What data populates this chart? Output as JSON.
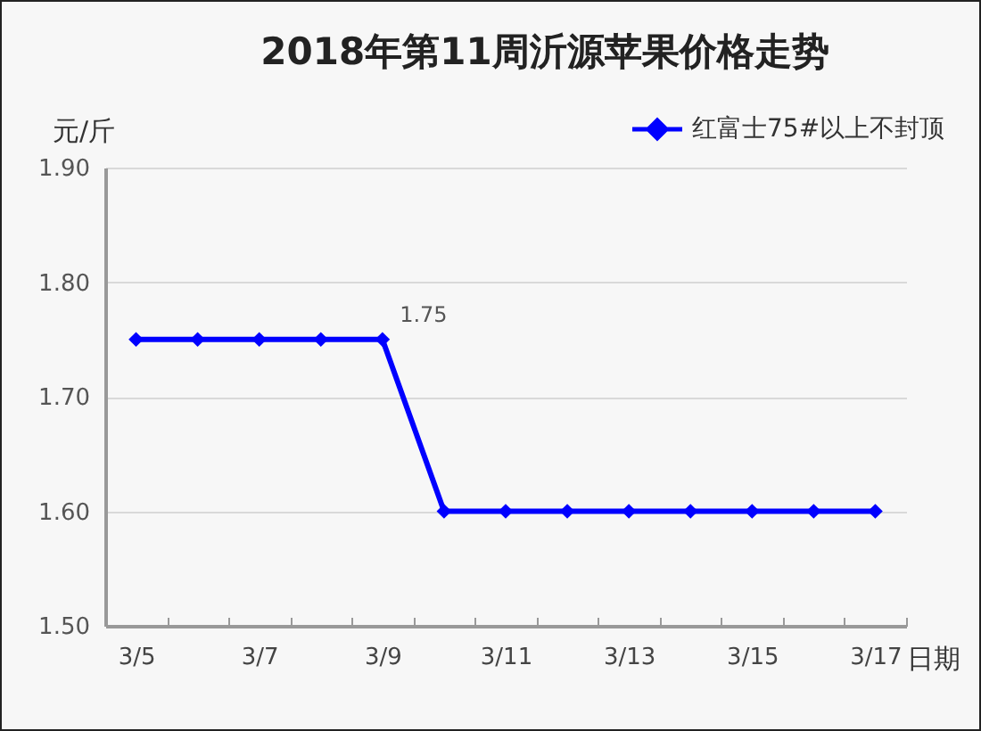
{
  "chart_data": {
    "type": "line",
    "title": "2018年第11周沂源苹果价格走势",
    "xlabel": "日期",
    "ylabel": "元/斤",
    "categories": [
      "3/5",
      null,
      "3/7",
      null,
      "3/9",
      null,
      "3/11",
      null,
      "3/13",
      null,
      "3/15",
      null,
      "3/17"
    ],
    "series": [
      {
        "name": "红富士75#以上不封顶",
        "color": "#0000ff",
        "values": [
          1.75,
          1.75,
          1.75,
          1.75,
          1.75,
          1.6,
          1.6,
          1.6,
          1.6,
          1.6,
          1.6,
          1.6,
          1.6
        ],
        "value_labels": [
          null,
          null,
          null,
          null,
          "1.75",
          null,
          null,
          null,
          null,
          null,
          null,
          null,
          null
        ]
      }
    ],
    "ylim": [
      1.5,
      1.9
    ],
    "yticks": [
      {
        "value": 1.5,
        "label": "1.50"
      },
      {
        "value": 1.6,
        "label": "1.60"
      },
      {
        "value": 1.7,
        "label": "1.70"
      },
      {
        "value": 1.8,
        "label": "1.80"
      },
      {
        "value": 1.9,
        "label": "1.90"
      }
    ],
    "grid": "y",
    "legend": "top right",
    "marker": "diamond"
  }
}
